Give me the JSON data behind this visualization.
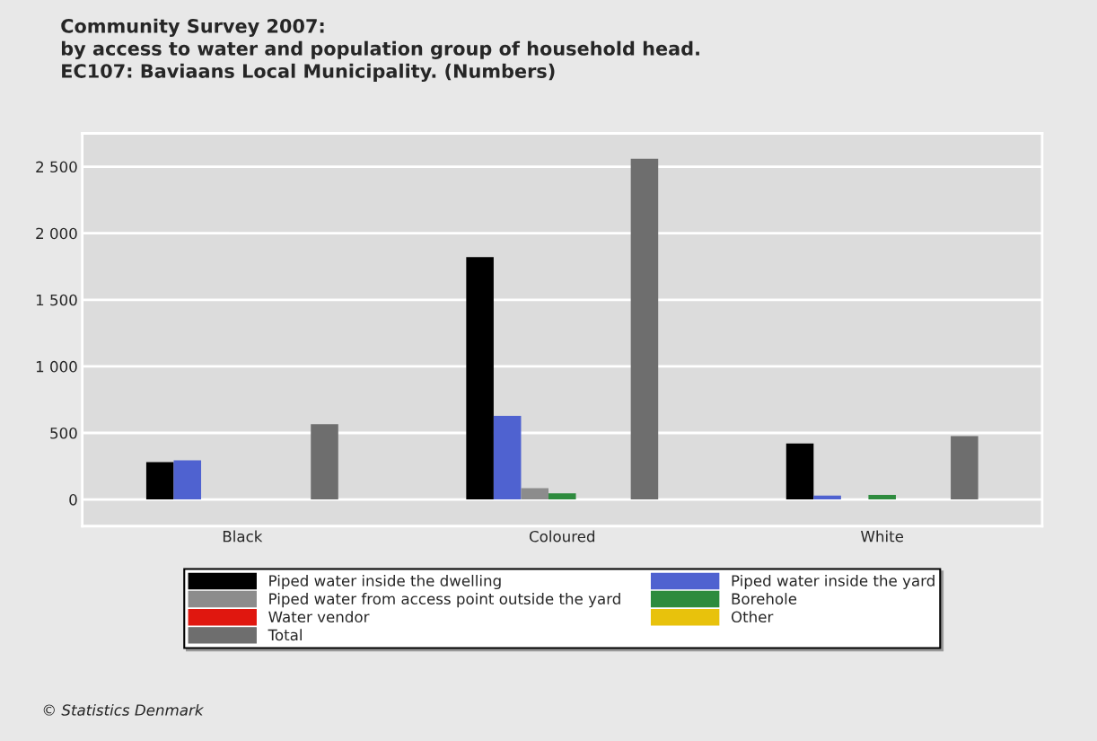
{
  "chart_data": {
    "type": "bar",
    "title": "Community Survey 2007:\nby access to water and population group of household head.\nEC107: Baviaans Local Municipality. (Numbers)",
    "categories": [
      "Black",
      "Coloured",
      "White"
    ],
    "series": [
      {
        "name": "Piped water inside the dwelling",
        "color": "#000000",
        "values": [
          281,
          1821,
          420
        ]
      },
      {
        "name": "Piped water inside the yard",
        "color": "#4f62d0",
        "values": [
          295,
          629,
          30
        ]
      },
      {
        "name": "Piped water from access point outside the yard",
        "color": "#8c8c8c",
        "values": [
          0,
          85,
          0
        ]
      },
      {
        "name": "Borehole",
        "color": "#2e8b3e",
        "values": [
          0,
          46,
          35
        ]
      },
      {
        "name": "Water vendor",
        "color": "#e0170f",
        "values": [
          0,
          0,
          0
        ]
      },
      {
        "name": "Other",
        "color": "#e8c20c",
        "values": [
          0,
          0,
          0
        ]
      },
      {
        "name": "Total",
        "color": "#6e6e6e",
        "values": [
          565,
          2559,
          477
        ]
      }
    ],
    "ylim": [
      -200,
      2750
    ],
    "yticks": [
      0,
      500,
      {
        "value": 1000,
        "label": "1 000"
      },
      {
        "value": 1500,
        "label": "1 500"
      },
      {
        "value": 2000,
        "label": "2 000"
      },
      {
        "value": 2500,
        "label": "2 500"
      }
    ],
    "grid": "y",
    "legend": "bottom",
    "annotations": [
      "© Statistics Denmark"
    ]
  }
}
